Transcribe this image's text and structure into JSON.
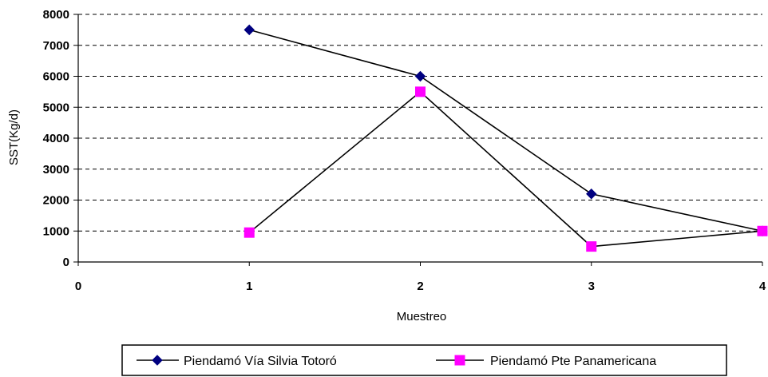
{
  "chart_data": {
    "type": "line",
    "xlabel": "Muestreo",
    "ylabel": "SST(Kg/d)",
    "xlim": [
      0,
      4
    ],
    "ylim": [
      0,
      8000
    ],
    "x_ticks": [
      "0",
      "1",
      "2",
      "3",
      "4"
    ],
    "y_ticks": [
      "0",
      "1000",
      "2000",
      "3000",
      "4000",
      "5000",
      "6000",
      "7000",
      "8000"
    ],
    "grid": "horizontal dashed",
    "legend_position": "bottom",
    "series": [
      {
        "name": "Piendamó Vía Silvia Totoró",
        "color": "#000080",
        "marker": "diamond",
        "x": [
          1,
          2,
          3,
          4
        ],
        "y": [
          7500,
          6000,
          2200,
          1000
        ]
      },
      {
        "name": "Piendamó Pte Panamericana",
        "color": "#FF00FF",
        "marker": "square",
        "x": [
          1,
          2,
          3,
          4
        ],
        "y": [
          950,
          5500,
          500,
          1000
        ]
      }
    ]
  }
}
